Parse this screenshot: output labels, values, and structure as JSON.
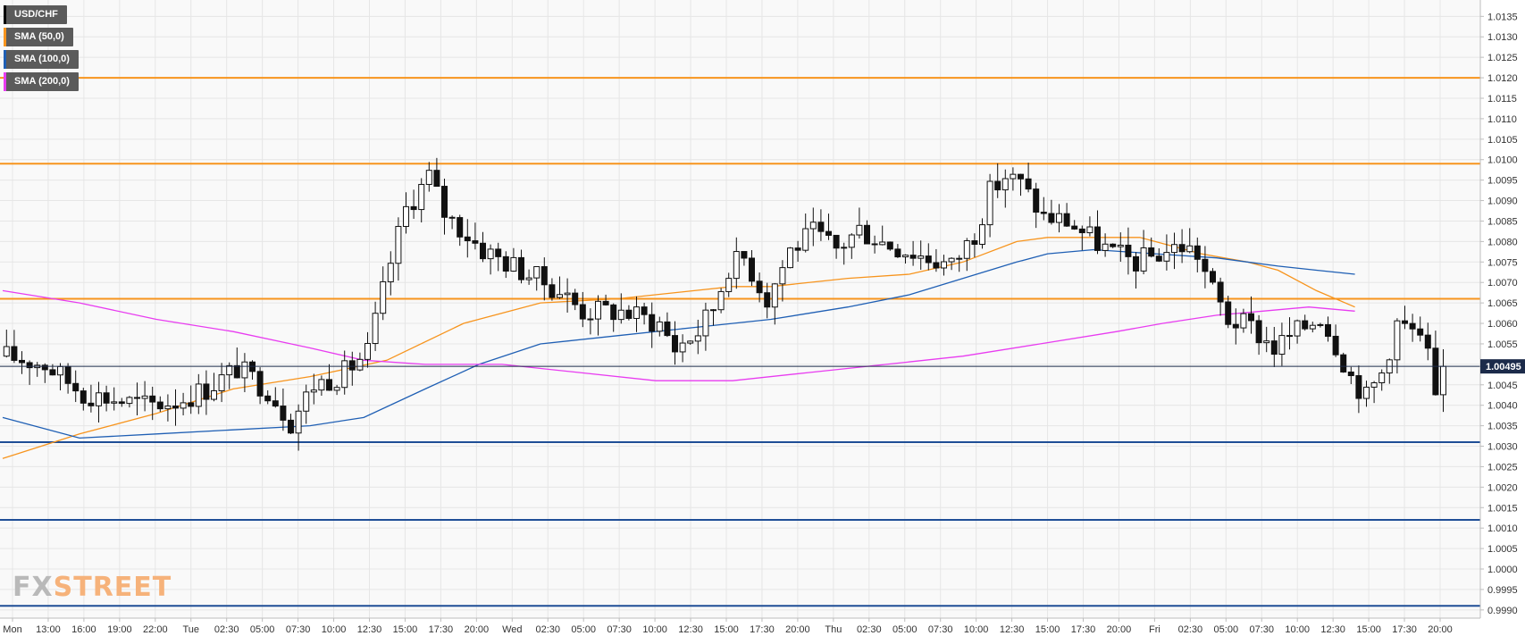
{
  "legend": [
    {
      "label": "USD/CHF",
      "color": "#000000"
    },
    {
      "label": "SMA (50,0)",
      "color": "#f7941d"
    },
    {
      "label": "SMA (100,0)",
      "color": "#1f5fb4"
    },
    {
      "label": "SMA (200,0)",
      "color": "#e83cf0"
    }
  ],
  "logo": {
    "fx": "FX",
    "street": "STREET"
  },
  "colors": {
    "resistance": "#f7941d",
    "support": "#1f4e96",
    "sma50": "#f7941d",
    "sma100": "#1f5fb4",
    "sma200": "#e83cf0",
    "current_price_line": "#1c2b4a",
    "price_badge_bg": "#1c2b4a"
  },
  "chart_data": {
    "type": "candlestick",
    "instrument": "USD/CHF",
    "ylim": [
      0.9988,
      1.0139
    ],
    "y_ticks": [
      "1.0135",
      "1.0130",
      "1.0125",
      "1.0120",
      "1.0115",
      "1.0110",
      "1.0105",
      "1.0100",
      "1.0095",
      "1.0090",
      "1.0085",
      "1.0080",
      "1.0075",
      "1.0070",
      "1.0065",
      "1.0060",
      "1.0055",
      "1.0050",
      "1.0045",
      "1.0040",
      "1.0035",
      "1.0030",
      "1.0025",
      "1.0020",
      "1.0015",
      "1.0010",
      "1.0005",
      "1.0000",
      "0.9995",
      "0.9990"
    ],
    "x_ticks": [
      "Mon",
      "13:00",
      "16:00",
      "19:00",
      "22:00",
      "Tue",
      "02:30",
      "05:00",
      "07:30",
      "10:00",
      "12:30",
      "15:00",
      "17:30",
      "20:00",
      "Wed",
      "02:30",
      "05:00",
      "07:30",
      "10:00",
      "12:30",
      "15:00",
      "17:30",
      "20:00",
      "Thu",
      "02:30",
      "05:00",
      "07:30",
      "10:00",
      "12:30",
      "15:00",
      "17:30",
      "20:00",
      "Fri",
      "02:30",
      "05:00",
      "07:30",
      "10:00",
      "12:30",
      "15:00",
      "17:30",
      "20:00"
    ],
    "current_price": "1.00495",
    "resistance_levels": [
      1.012,
      1.0099,
      1.0066
    ],
    "support_levels": [
      1.0031,
      1.0012,
      0.9991
    ],
    "close_path": [
      [
        0,
        1.0052
      ],
      [
        5,
        1.005
      ],
      [
        10,
        1.0043
      ],
      [
        18,
        1.004
      ],
      [
        22,
        1.0041
      ],
      [
        26,
        1.0044
      ],
      [
        30,
        1.0049
      ],
      [
        34,
        1.0044
      ],
      [
        37,
        1.0036
      ],
      [
        40,
        1.0045
      ],
      [
        44,
        1.0048
      ],
      [
        47,
        1.0053
      ],
      [
        50,
        1.0075
      ],
      [
        52,
        1.0088
      ],
      [
        55,
        1.0096
      ],
      [
        57,
        1.0087
      ],
      [
        62,
        1.0078
      ],
      [
        67,
        1.0073
      ],
      [
        72,
        1.0068
      ],
      [
        75,
        1.0063
      ],
      [
        80,
        1.0063
      ],
      [
        85,
        1.006
      ],
      [
        87,
        1.0054
      ],
      [
        90,
        1.0058
      ],
      [
        92,
        1.0064
      ],
      [
        94,
        1.0074
      ],
      [
        96,
        1.0076
      ],
      [
        99,
        1.0066
      ],
      [
        102,
        1.0078
      ],
      [
        105,
        1.0082
      ],
      [
        108,
        1.0078
      ],
      [
        111,
        1.0083
      ],
      [
        114,
        1.008
      ],
      [
        117,
        1.0078
      ],
      [
        120,
        1.0076
      ],
      [
        123,
        1.0074
      ],
      [
        126,
        1.0082
      ],
      [
        128,
        1.0092
      ],
      [
        130,
        1.0096
      ],
      [
        132,
        1.0094
      ],
      [
        135,
        1.0086
      ],
      [
        138,
        1.0085
      ],
      [
        141,
        1.0081
      ],
      [
        144,
        1.0077
      ],
      [
        147,
        1.0075
      ],
      [
        150,
        1.0077
      ],
      [
        153,
        1.0079
      ],
      [
        155,
        1.0077
      ],
      [
        157,
        1.0068
      ],
      [
        159,
        1.0061
      ],
      [
        162,
        1.0059
      ],
      [
        165,
        1.0054
      ],
      [
        168,
        1.0058
      ],
      [
        171,
        1.0062
      ],
      [
        173,
        1.0055
      ],
      [
        175,
        1.0047
      ],
      [
        177,
        1.0042
      ],
      [
        179,
        1.0048
      ],
      [
        181,
        1.006
      ],
      [
        183,
        1.0058
      ],
      [
        185,
        1.0052
      ],
      [
        186,
        1.004
      ],
      [
        187,
        1.00495
      ]
    ],
    "series": [
      {
        "name": "SMA (50,0)",
        "points": [
          [
            0,
            1.0027
          ],
          [
            10,
            1.0033
          ],
          [
            20,
            1.0038
          ],
          [
            30,
            1.0044
          ],
          [
            40,
            1.0047
          ],
          [
            50,
            1.0051
          ],
          [
            60,
            1.006
          ],
          [
            70,
            1.0065
          ],
          [
            80,
            1.0066
          ],
          [
            90,
            1.0068
          ],
          [
            95,
            1.0069
          ],
          [
            100,
            1.0069
          ],
          [
            110,
            1.0071
          ],
          [
            118,
            1.0072
          ],
          [
            125,
            1.0075
          ],
          [
            132,
            1.008
          ],
          [
            136,
            1.0081
          ],
          [
            142,
            1.0081
          ],
          [
            148,
            1.0081
          ],
          [
            150,
            1.008
          ],
          [
            156,
            1.0077
          ],
          [
            162,
            1.0075
          ],
          [
            166,
            1.0073
          ],
          [
            171,
            1.0068
          ],
          [
            176,
            1.0064
          ]
        ]
      },
      {
        "name": "SMA (100,0)",
        "points": [
          [
            0,
            1.0037
          ],
          [
            10,
            1.0032
          ],
          [
            20,
            1.0033
          ],
          [
            30,
            1.0034
          ],
          [
            40,
            1.0035
          ],
          [
            47,
            1.0037
          ],
          [
            55,
            1.0044
          ],
          [
            62,
            1.005
          ],
          [
            70,
            1.0055
          ],
          [
            80,
            1.0057
          ],
          [
            90,
            1.0059
          ],
          [
            100,
            1.0061
          ],
          [
            110,
            1.0064
          ],
          [
            118,
            1.0067
          ],
          [
            125,
            1.0071
          ],
          [
            132,
            1.0075
          ],
          [
            136,
            1.0077
          ],
          [
            142,
            1.0078
          ],
          [
            150,
            1.0077
          ],
          [
            158,
            1.0076
          ],
          [
            166,
            1.0074
          ],
          [
            171,
            1.0073
          ],
          [
            176,
            1.0072
          ]
        ]
      },
      {
        "name": "SMA (200,0)",
        "points": [
          [
            0,
            1.0068
          ],
          [
            10,
            1.0065
          ],
          [
            20,
            1.0061
          ],
          [
            30,
            1.0058
          ],
          [
            40,
            1.0054
          ],
          [
            47,
            1.0051
          ],
          [
            55,
            1.005
          ],
          [
            65,
            1.005
          ],
          [
            75,
            1.0048
          ],
          [
            85,
            1.0046
          ],
          [
            95,
            1.0046
          ],
          [
            105,
            1.0048
          ],
          [
            115,
            1.005
          ],
          [
            125,
            1.0052
          ],
          [
            135,
            1.0055
          ],
          [
            145,
            1.0058
          ],
          [
            151,
            1.006
          ],
          [
            158,
            1.0062
          ],
          [
            164,
            1.0063
          ],
          [
            170,
            1.0064
          ],
          [
            176,
            1.0063
          ]
        ]
      }
    ]
  }
}
